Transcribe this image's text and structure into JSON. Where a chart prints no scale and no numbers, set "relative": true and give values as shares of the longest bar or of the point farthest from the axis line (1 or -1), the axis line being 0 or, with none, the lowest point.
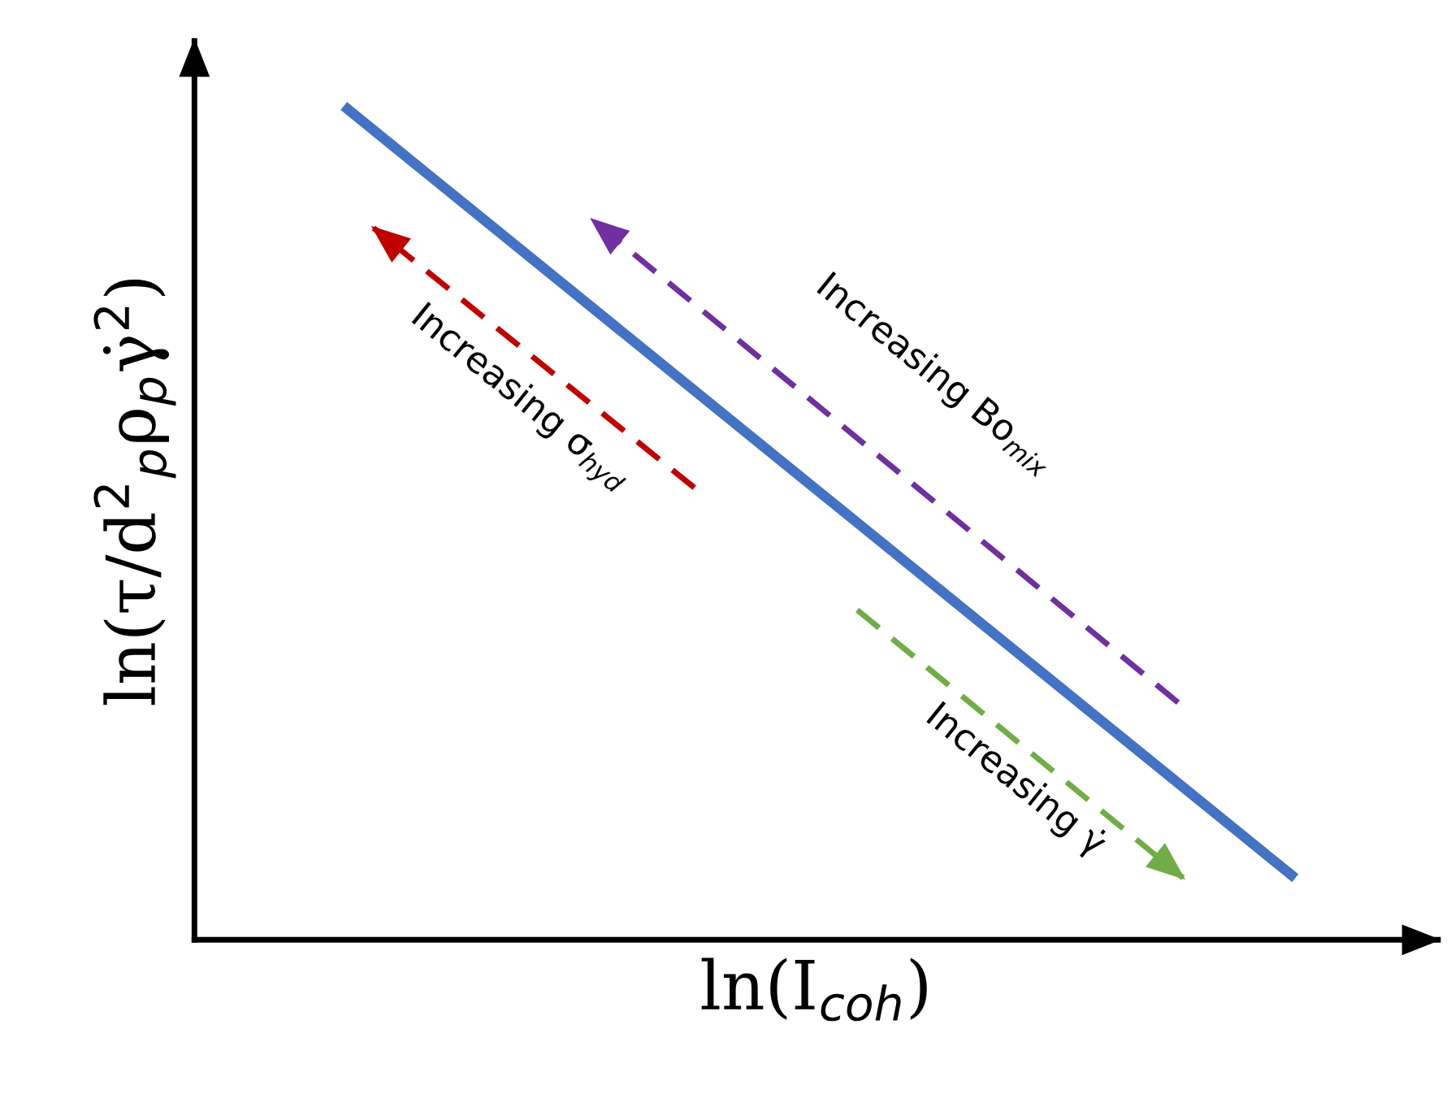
{
  "chart_data": {
    "type": "line",
    "relative": true,
    "xlabel": "ln(I$_{coh}$)",
    "ylabel": "ln(τ/d$^{2}$$_{p}$ρ$_{p}$γ̇$^{2}$)",
    "categories": [
      null,
      null
    ],
    "series": [
      {
        "color": "#4472c4",
        "values": [
          1,
          0.074
        ]
      }
    ],
    "annotations": [
      "Increasing σ$_{hyd}$",
      "Increasing Bo$_{mix}$",
      "Increasing γ̇"
    ],
    "line_style": "solid"
  }
}
